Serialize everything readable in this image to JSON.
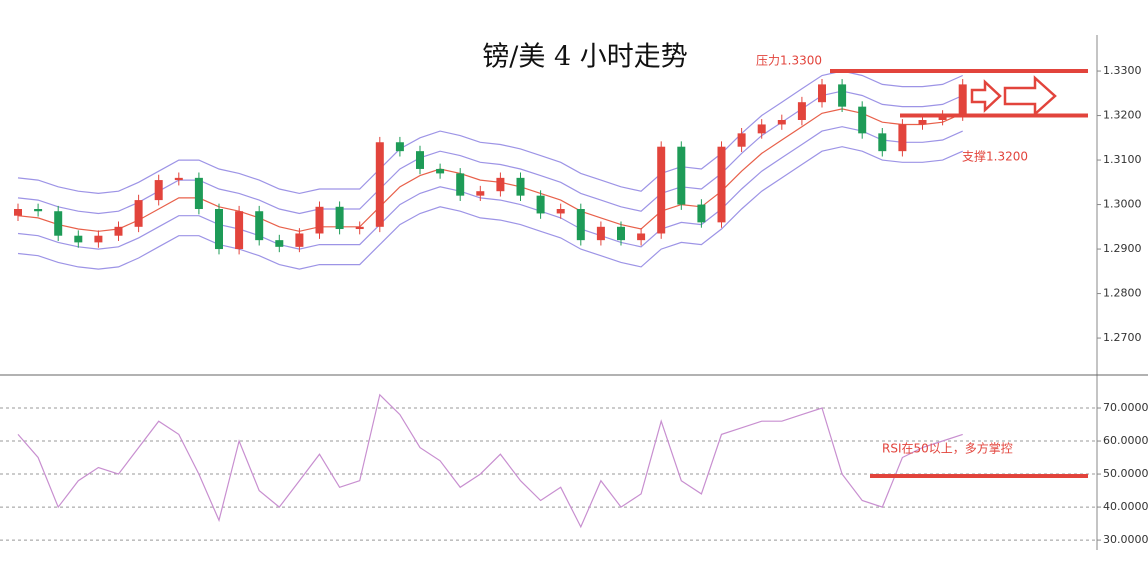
{
  "chart_data": [
    {
      "type": "candlestick",
      "title": "镑/美 4 小时走势",
      "open": [
        1.2975,
        1.299,
        1.2985,
        1.293,
        1.2915,
        1.293,
        1.295,
        1.301,
        1.3055,
        1.306,
        1.299,
        1.29,
        1.2985,
        1.292,
        1.2905,
        1.2935,
        1.2995,
        1.2945,
        1.295,
        1.314,
        1.312,
        1.308,
        1.307,
        1.302,
        1.303,
        1.306,
        1.302,
        1.298,
        1.299,
        1.292,
        1.295,
        1.292,
        1.2935,
        1.313,
        1.3,
        1.296,
        1.313,
        1.316,
        1.318,
        1.319,
        1.323,
        1.327,
        1.322,
        1.316,
        1.312,
        1.318,
        1.319,
        1.32
      ],
      "high": [
        1.3002,
        1.3002,
        1.2997,
        1.2942,
        1.2942,
        1.2962,
        1.3022,
        1.3067,
        1.3072,
        1.3072,
        1.3002,
        1.2997,
        1.2997,
        1.2932,
        1.2947,
        1.3007,
        1.3007,
        1.2962,
        1.3152,
        1.3152,
        1.3132,
        1.3092,
        1.3082,
        1.3042,
        1.3072,
        1.3072,
        1.3032,
        1.3002,
        1.3002,
        1.2962,
        1.2962,
        1.2947,
        1.3142,
        1.3142,
        1.3012,
        1.3142,
        1.3172,
        1.3192,
        1.3202,
        1.3242,
        1.3282,
        1.3282,
        1.3232,
        1.3172,
        1.3192,
        1.3202,
        1.3212,
        1.3282
      ],
      "low": [
        1.2963,
        1.2973,
        1.2918,
        1.2903,
        1.2903,
        1.2918,
        1.2938,
        1.2998,
        1.3043,
        1.2978,
        1.2888,
        1.2888,
        1.2908,
        1.2893,
        1.2893,
        1.2923,
        1.2933,
        1.2933,
        1.2938,
        1.3108,
        1.3068,
        1.3058,
        1.3008,
        1.3008,
        1.3018,
        1.3008,
        1.2968,
        1.2968,
        1.2908,
        1.2908,
        1.2908,
        1.2908,
        1.2923,
        1.2988,
        1.2948,
        1.2948,
        1.3118,
        1.3148,
        1.3168,
        1.3178,
        1.3218,
        1.3208,
        1.3148,
        1.3108,
        1.3108,
        1.3168,
        1.3178,
        1.3188
      ],
      "close": [
        1.299,
        1.2985,
        1.293,
        1.2915,
        1.293,
        1.295,
        1.301,
        1.3055,
        1.306,
        1.299,
        1.29,
        1.2985,
        1.292,
        1.2905,
        1.2935,
        1.2995,
        1.2945,
        1.295,
        1.314,
        1.312,
        1.308,
        1.307,
        1.302,
        1.303,
        1.306,
        1.302,
        1.298,
        1.299,
        1.292,
        1.295,
        1.292,
        1.2935,
        1.313,
        1.3,
        1.296,
        1.313,
        1.316,
        1.318,
        1.319,
        1.323,
        1.327,
        1.322,
        1.316,
        1.312,
        1.318,
        1.319,
        1.32,
        1.327
      ],
      "up_color": "#e2443c",
      "down_color": "#1e9b57",
      "overlays": [
        {
          "color": "#9d94e6",
          "values": [
            1.306,
            1.3055,
            1.304,
            1.303,
            1.3025,
            1.303,
            1.305,
            1.3075,
            1.31,
            1.31,
            1.308,
            1.307,
            1.3055,
            1.3035,
            1.3025,
            1.3035,
            1.3035,
            1.3035,
            1.308,
            1.3125,
            1.315,
            1.3165,
            1.3155,
            1.314,
            1.3135,
            1.3125,
            1.311,
            1.3095,
            1.307,
            1.3055,
            1.304,
            1.303,
            1.307,
            1.3085,
            1.308,
            1.3115,
            1.316,
            1.32,
            1.323,
            1.326,
            1.329,
            1.33,
            1.329,
            1.327,
            1.3265,
            1.3265,
            1.327,
            1.329
          ]
        },
        {
          "color": "#9d94e6",
          "values": [
            1.3015,
            1.301,
            1.2995,
            1.2985,
            1.298,
            1.2985,
            1.3005,
            1.303,
            1.3055,
            1.3055,
            1.3035,
            1.3025,
            1.301,
            1.299,
            1.298,
            1.299,
            1.299,
            1.299,
            1.3035,
            1.308,
            1.3105,
            1.312,
            1.311,
            1.3095,
            1.309,
            1.308,
            1.3065,
            1.305,
            1.3025,
            1.301,
            1.2995,
            1.2985,
            1.3025,
            1.304,
            1.3035,
            1.307,
            1.3115,
            1.3155,
            1.3185,
            1.3215,
            1.3245,
            1.3255,
            1.3245,
            1.3225,
            1.322,
            1.322,
            1.3225,
            1.3245
          ]
        },
        {
          "color": "#e8604a",
          "values": [
            1.2975,
            1.297,
            1.2955,
            1.2945,
            1.294,
            1.2945,
            1.2965,
            1.299,
            1.3015,
            1.3015,
            1.2995,
            1.2985,
            1.297,
            1.295,
            1.294,
            1.295,
            1.295,
            1.295,
            1.2995,
            1.304,
            1.3065,
            1.308,
            1.307,
            1.3055,
            1.305,
            1.304,
            1.3025,
            1.301,
            1.2985,
            1.297,
            1.2955,
            1.2945,
            1.2985,
            1.3,
            1.2995,
            1.303,
            1.3075,
            1.3115,
            1.3145,
            1.3175,
            1.3205,
            1.3215,
            1.3205,
            1.3185,
            1.318,
            1.318,
            1.3185,
            1.3205
          ]
        },
        {
          "color": "#9d94e6",
          "values": [
            1.2935,
            1.293,
            1.2915,
            1.2905,
            1.29,
            1.2905,
            1.2925,
            1.295,
            1.2975,
            1.2975,
            1.2955,
            1.2945,
            1.293,
            1.291,
            1.29,
            1.291,
            1.291,
            1.291,
            1.2955,
            1.3,
            1.3025,
            1.304,
            1.303,
            1.3015,
            1.301,
            1.3,
            1.2985,
            1.297,
            1.2945,
            1.293,
            1.2915,
            1.2905,
            1.2945,
            1.296,
            1.2955,
            1.299,
            1.3035,
            1.3075,
            1.3105,
            1.3135,
            1.3165,
            1.3175,
            1.3165,
            1.3145,
            1.314,
            1.314,
            1.3145,
            1.3165
          ]
        },
        {
          "color": "#9d94e6",
          "values": [
            1.289,
            1.2885,
            1.287,
            1.286,
            1.2855,
            1.286,
            1.288,
            1.2905,
            1.293,
            1.293,
            1.291,
            1.29,
            1.2885,
            1.2865,
            1.2855,
            1.2865,
            1.2865,
            1.2865,
            1.291,
            1.2955,
            1.298,
            1.2995,
            1.2985,
            1.297,
            1.2965,
            1.2955,
            1.294,
            1.2925,
            1.29,
            1.2885,
            1.287,
            1.286,
            1.29,
            1.2915,
            1.291,
            1.2945,
            1.299,
            1.303,
            1.306,
            1.309,
            1.312,
            1.313,
            1.312,
            1.31,
            1.3095,
            1.3095,
            1.31,
            1.312
          ]
        }
      ],
      "annotations": [
        {
          "text": "压力1.3300",
          "value": 1.33,
          "color": "#e2443c"
        },
        {
          "text": "支撑1.3200",
          "value": 1.32,
          "color": "#e2443c"
        }
      ],
      "ylim": [
        1.2617,
        1.3381
      ],
      "yticks": [
        {
          "value": 1.27,
          "label": "1.2700"
        },
        {
          "value": 1.28,
          "label": "1.2800"
        },
        {
          "value": 1.29,
          "label": "1.2900"
        },
        {
          "value": 1.3,
          "label": "1.3000"
        },
        {
          "value": 1.31,
          "label": "1.3100"
        },
        {
          "value": 1.32,
          "label": "1.3200"
        },
        {
          "value": 1.33,
          "label": "1.3300"
        }
      ]
    },
    {
      "type": "line",
      "values": [
        62,
        55,
        40,
        48,
        52,
        50,
        58,
        66,
        62,
        50,
        36,
        60,
        45,
        40,
        48,
        56,
        46,
        48,
        74,
        68,
        58,
        54,
        46,
        50,
        56,
        48,
        42,
        46,
        34,
        48,
        40,
        44,
        66,
        48,
        44,
        62,
        64,
        66,
        66,
        68,
        70,
        50,
        42,
        40,
        55,
        58,
        60,
        62
      ],
      "color": "#c88fd0",
      "grid": "dashed",
      "annotations": [
        {
          "text": "RSI在50以上，多方掌控",
          "value": 49.4,
          "color": "#e2443c"
        }
      ],
      "ylim": [
        27,
        80
      ],
      "yticks": [
        {
          "value": 30,
          "label": "30.0000"
        },
        {
          "value": 40,
          "label": "40.0000"
        },
        {
          "value": 50,
          "label": "50.0000"
        },
        {
          "value": 60,
          "label": "60.0000"
        },
        {
          "value": 70,
          "label": "70.0000"
        }
      ]
    }
  ]
}
